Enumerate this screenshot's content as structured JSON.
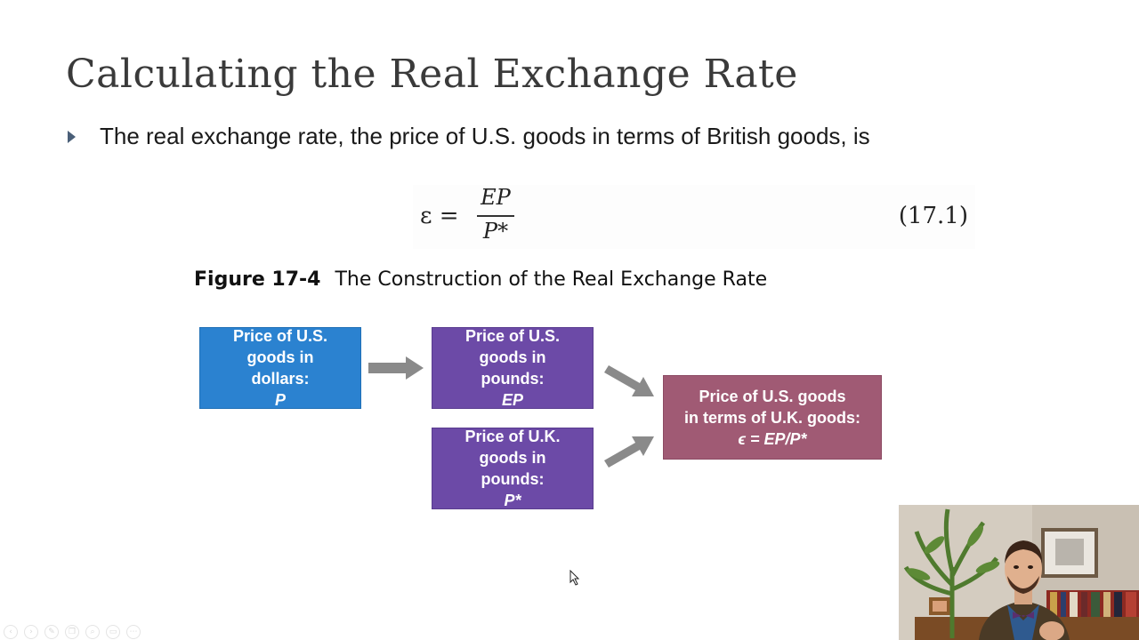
{
  "slide": {
    "title": "Calculating the Real Exchange Rate",
    "bullet": "The real exchange rate, the price of U.S. goods in terms of British goods, is"
  },
  "equation": {
    "lhs": "ε =",
    "numerator": "EP",
    "denominator": "P*",
    "number": "(17.1)"
  },
  "figure": {
    "number": "Figure 17-4",
    "caption": "The Construction of the Real Exchange Rate",
    "boxes": {
      "us_dollars": {
        "lines": [
          "Price of U.S.",
          "goods in",
          "dollars: "
        ],
        "emph": "P"
      },
      "us_pounds": {
        "lines": [
          "Price of U.S.",
          "goods in",
          "pounds: "
        ],
        "emph": "EP"
      },
      "uk_pounds": {
        "lines": [
          "Price of U.K.",
          "goods in",
          "pounds: "
        ],
        "emph": "P*"
      },
      "real_rate": {
        "lines": [
          "Price of U.S. goods",
          "in terms of U.K. goods:"
        ],
        "emph": "ϵ = EP/P*"
      }
    },
    "colors": {
      "blue": "#2b82d0",
      "purple": "#6c4aa7",
      "rose": "#a05a74",
      "arrow": "#8a8a8a"
    }
  },
  "player_controls": {
    "icons": [
      "previous-icon",
      "play-icon",
      "pen-icon",
      "copy-icon",
      "zoom-icon",
      "subtitles-icon",
      "more-icon"
    ]
  }
}
